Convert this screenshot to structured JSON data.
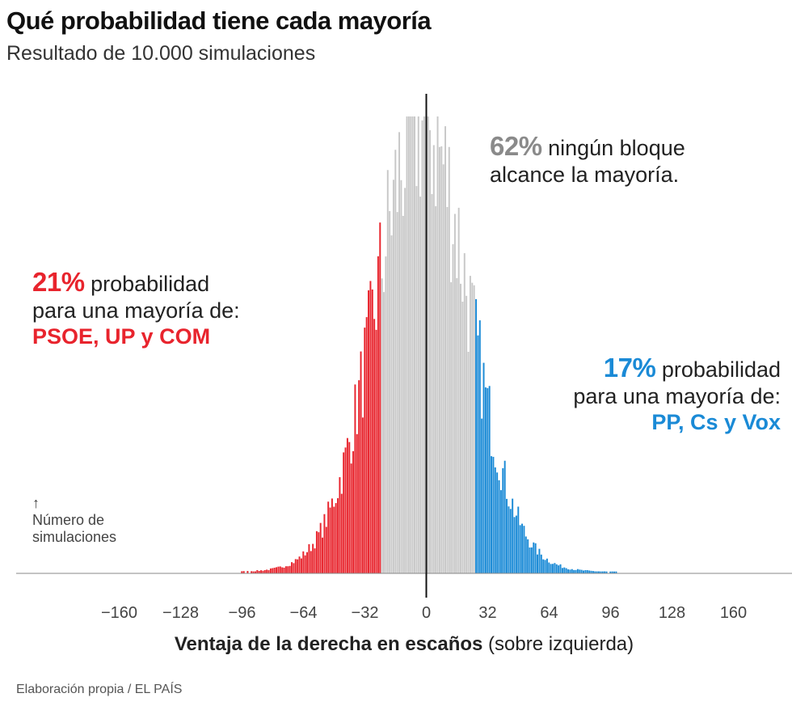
{
  "title": "Qué probabilidad tiene cada mayoría",
  "subtitle": "Resultado de 10.000 simulaciones",
  "source": "Elaboración propia / EL PAÍS",
  "annotations": {
    "left": {
      "pct": "21%",
      "text": "probabilidad",
      "line2": "para una mayoría de:",
      "parties": "PSOE, UP y COM"
    },
    "center": {
      "pct": "62%",
      "text": "ningún bloque",
      "line2": "alcance la mayoría."
    },
    "right": {
      "pct": "17%",
      "text": "probabilidad",
      "line2": "para una mayoría de:",
      "parties": "PP, Cs y Vox"
    }
  },
  "ylabel": {
    "arrow": "↑",
    "line1": "Número de",
    "line2": "simulaciones"
  },
  "xlabel": {
    "bold": "Ventaja de la derecha en escaños",
    "rest": "(sobre izquierda)"
  },
  "colors": {
    "left": "#e8242d",
    "center": "#c8c8c8",
    "right": "#1a8ad6",
    "axis": "#111111"
  },
  "chart_data": {
    "type": "bar",
    "title": "Qué probabilidad tiene cada mayoría",
    "xlabel": "Ventaja de la derecha en escaños (sobre izquierda)",
    "ylabel": "Número de simulaciones",
    "xlim": [
      -176,
      176
    ],
    "xticks": [
      -160,
      -128,
      -96,
      -64,
      -32,
      0,
      32,
      64,
      96,
      128,
      160
    ],
    "tick_labels": [
      "−160",
      "−128",
      "−96",
      "−64",
      "−32",
      "0",
      "32",
      "64",
      "96",
      "128",
      "160"
    ],
    "thresholds": {
      "left_majority_max": -24,
      "right_majority_min": 26
    },
    "series": [
      {
        "name": "PSOE, UP y COM",
        "share": "21%",
        "color": "#e8242d"
      },
      {
        "name": "ningún bloque",
        "share": "62%",
        "color": "#c8c8c8"
      },
      {
        "name": "PP, Cs y Vox",
        "share": "17%",
        "color": "#1a8ad6"
      }
    ],
    "distribution": {
      "peak_x": -2,
      "peak_count": 100,
      "spread_left": 24,
      "spread_right": 24
    }
  }
}
